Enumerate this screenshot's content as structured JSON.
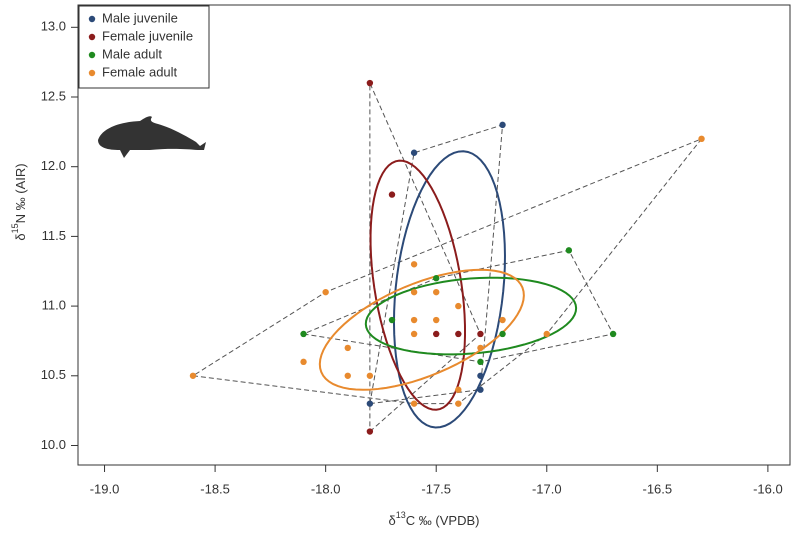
{
  "chart_data": {
    "type": "scatter",
    "x_label": [
      "δ",
      "13",
      "C ‰ (VPDB)"
    ],
    "y_label": [
      "δ",
      "15",
      "N ‰ (AIR)"
    ],
    "xlim": [
      -19.12,
      -15.9
    ],
    "ylim": [
      9.86,
      13.16
    ],
    "xticks": [
      {
        "value": -19.0,
        "label": "-19.0"
      },
      {
        "value": -18.5,
        "label": "-18.5"
      },
      {
        "value": -18.0,
        "label": "-18.0"
      },
      {
        "value": -17.5,
        "label": "-17.5"
      },
      {
        "value": -17.0,
        "label": "-17.0"
      },
      {
        "value": -16.5,
        "label": "-16.5"
      },
      {
        "value": -16.0,
        "label": "-16.0"
      }
    ],
    "yticks": [
      {
        "value": 10.0,
        "label": "10.0"
      },
      {
        "value": 10.5,
        "label": "10.5"
      },
      {
        "value": 11.0,
        "label": "11.0"
      },
      {
        "value": 11.5,
        "label": "11.5"
      },
      {
        "value": 12.0,
        "label": "12.0"
      },
      {
        "value": 12.5,
        "label": "12.5"
      },
      {
        "value": 13.0,
        "label": "13.0"
      }
    ],
    "legend": "top-left",
    "series": [
      {
        "name": "Male juvenile",
        "color": "#2c4a78",
        "x": [
          -17.2,
          -17.6,
          -17.8,
          -17.3,
          -17.3
        ],
        "values": [
          12.3,
          12.1,
          10.3,
          10.5,
          10.4
        ]
      },
      {
        "name": "Female juvenile",
        "color": "#8b1c1c",
        "x": [
          -17.8,
          -17.7,
          -17.8,
          -17.5,
          -17.4,
          -17.3
        ],
        "values": [
          12.6,
          11.8,
          10.1,
          10.8,
          10.8,
          10.8
        ]
      },
      {
        "name": "Male adult",
        "color": "#1f8a1f",
        "x": [
          -18.1,
          -16.9,
          -16.7,
          -17.5,
          -17.7,
          -17.3,
          -17.2
        ],
        "values": [
          10.8,
          11.4,
          10.8,
          11.2,
          10.9,
          10.6,
          10.8
        ]
      },
      {
        "name": "Female adult",
        "color": "#e88a2e",
        "x": [
          -18.6,
          -16.3,
          -18.0,
          -18.1,
          -17.6,
          -17.9,
          -17.9,
          -17.8,
          -17.6,
          -17.6,
          -17.6,
          -17.5,
          -17.5,
          -17.4,
          -17.4,
          -17.4,
          -17.6,
          -17.3,
          -17.2,
          -17.0
        ],
        "values": [
          10.5,
          12.2,
          11.1,
          10.6,
          11.3,
          10.7,
          10.5,
          10.5,
          11.1,
          10.9,
          10.8,
          11.1,
          10.9,
          11.0,
          10.4,
          10.3,
          10.3,
          10.7,
          10.9,
          10.8
        ]
      }
    ]
  }
}
